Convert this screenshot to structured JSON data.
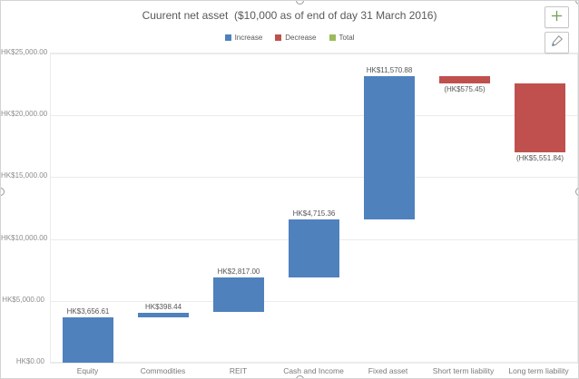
{
  "title": "Cuurent net asset  ($10,000 as of end of day 31 March 2016)",
  "legend": [
    {
      "label": "Increase",
      "color": "#4f81bd"
    },
    {
      "label": "Decrease",
      "color": "#c0504d"
    },
    {
      "label": "Total",
      "color": "#9bbb59"
    }
  ],
  "toolbar": {
    "chart_elements_icon": "plus-icon",
    "chart_styles_icon": "paintbrush-icon"
  },
  "chart_data": {
    "type": "bar",
    "subtype": "waterfall",
    "title": "Cuurent net asset  ($10,000 as of end of day 31 March 2016)",
    "categories": [
      "Equity",
      "Commodities",
      "REIT",
      "Cash and Income",
      "Fixed asset",
      "Short term liability",
      "Long term liability"
    ],
    "values": [
      3656.61,
      398.44,
      2817.0,
      4715.36,
      11570.88,
      -575.45,
      -5551.84
    ],
    "cumulative": [
      3656.61,
      4055.05,
      6872.05,
      11587.41,
      23158.29,
      22582.84,
      17031.0
    ],
    "data_labels": [
      "HK$3,656.61",
      "HK$398.44",
      "HK$2,817.00",
      "HK$4,715.36",
      "HK$11,570.88",
      "(HK$575.45)",
      "(HK$5,551.84)"
    ],
    "yticks": [
      0,
      5000,
      10000,
      15000,
      20000,
      25000
    ],
    "ytick_labels": [
      "HK$0.00",
      "HK$5,000.00",
      "HK$10,000.00",
      "HK$15,000.00",
      "HK$20,000.00",
      "HK$25,000.00"
    ],
    "ylim": [
      0,
      25000
    ],
    "grid": true,
    "legend_position": "top",
    "xlabel": "",
    "ylabel": "",
    "colors": {
      "increase": "#4f81bd",
      "decrease": "#c0504d",
      "total": "#9bbb59",
      "grid": "#ebebeb",
      "axis_text": "#8c8c8c",
      "label_text": "#555555"
    }
  }
}
